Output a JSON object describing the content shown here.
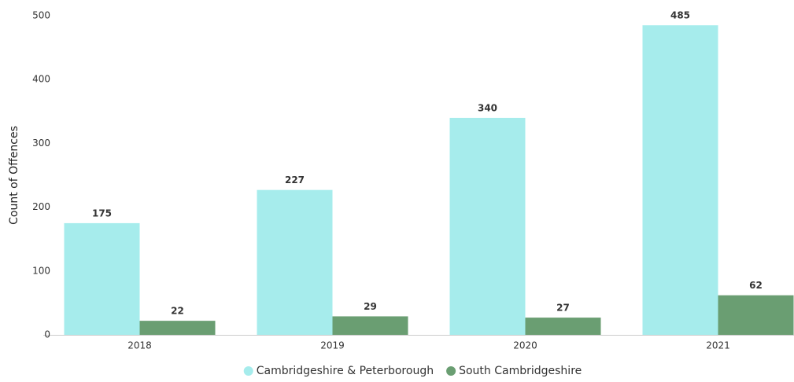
{
  "chart_data": {
    "type": "bar",
    "y_axis_label": "Count of Offences",
    "categories": [
      "2018",
      "2019",
      "2020",
      "2021"
    ],
    "series": [
      {
        "name": "Cambridgeshire & Peterborough",
        "color": "#a6ecec",
        "values": [
          175,
          227,
          340,
          485
        ]
      },
      {
        "name": "South Cambridgeshire",
        "color": "#6a9e72",
        "values": [
          22,
          29,
          27,
          62
        ]
      }
    ],
    "ylim": [
      0,
      500
    ],
    "yticks": [
      0,
      100,
      200,
      300,
      400,
      500
    ],
    "grid": false,
    "legend": "bottom"
  }
}
